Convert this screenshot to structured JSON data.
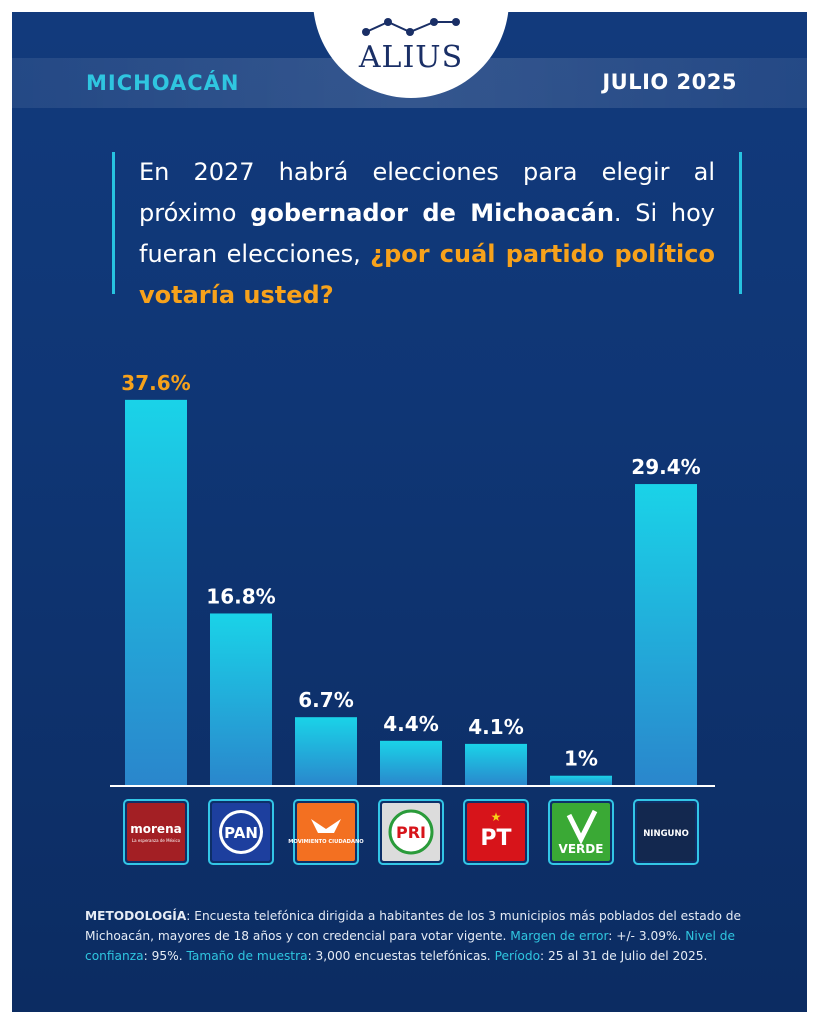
{
  "brand": "ALIUS",
  "header": {
    "region": "MICHOACÁN",
    "date": "JULIO 2025"
  },
  "question": [
    {
      "text": "En 2027 habrá elecciones para elegir al próximo ",
      "style": "plain"
    },
    {
      "text": "gobernador de Michoacán",
      "style": "bold"
    },
    {
      "text": ". Si hoy fueran elecciones, ",
      "style": "plain"
    },
    {
      "text": "¿por cuál partido político votaría usted?",
      "style": "orange"
    }
  ],
  "chart_data": {
    "type": "bar",
    "categories": [
      "morena",
      "PAN",
      "MOVIMIENTO CIUDADANO",
      "PRI",
      "PT",
      "VERDE",
      "NINGUNO"
    ],
    "category_colors": [
      "#a31f24",
      "#1d3f9e",
      "#f37021",
      "#dcdcdc",
      "#d7141a",
      "#3aa935",
      "#13284f"
    ],
    "values": [
      37.6,
      16.8,
      6.7,
      4.4,
      4.1,
      1,
      29.4
    ],
    "value_labels": [
      "37.6%",
      "16.8%",
      "6.7%",
      "4.4%",
      "4.1%",
      "1%",
      "29.4%"
    ],
    "color": "#1ccbe3",
    "highlight_color": "#f7a21b"
  },
  "morena_tagline": "La esperanza de México",
  "methodology": [
    {
      "text": "METODOLOGÍA",
      "style": "bold"
    },
    {
      "text": ": Encuesta telefónica dirigida a habitantes de los 3 municipios más poblados del estado de Michoacán, mayores de 18 años y con credencial para votar vigente. ",
      "style": "plain"
    },
    {
      "text": "Margen de error",
      "style": "cyan"
    },
    {
      "text": ": +/- 3.09%. ",
      "style": "plain"
    },
    {
      "text": "Nivel de confianza",
      "style": "cyan"
    },
    {
      "text": ": 95%. ",
      "style": "plain"
    },
    {
      "text": "Tamaño de muestra",
      "style": "cyan"
    },
    {
      "text": ": 3,000 encuestas telefónicas. ",
      "style": "plain"
    },
    {
      "text": "Período",
      "style": "cyan"
    },
    {
      "text": ": 25 al 31 de Julio del 2025.",
      "style": "plain"
    }
  ]
}
